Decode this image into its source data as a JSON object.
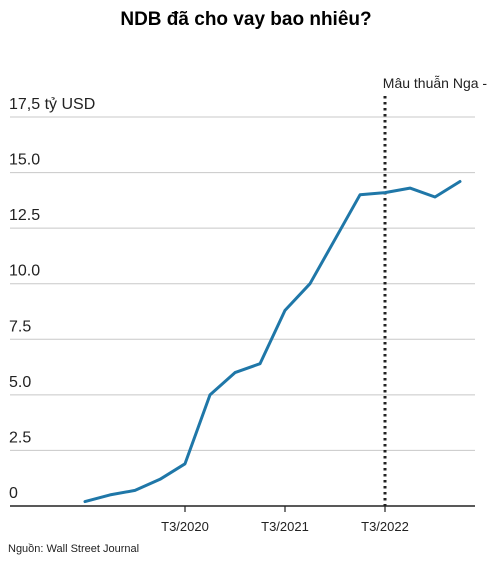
{
  "chart_data": {
    "type": "line",
    "title": "NDB đã cho vay bao nhiêu?",
    "ylabel": "",
    "xlabel": "",
    "ylim": [
      0,
      17.5
    ],
    "y_ticks": [
      "0",
      "2.5",
      "5.0",
      "7.5",
      "10.0",
      "12.5",
      "15.0",
      "17,5 tỷ USD"
    ],
    "y_tick_values": [
      0,
      2.5,
      5,
      7.5,
      10,
      12.5,
      15,
      17.5
    ],
    "x_ticks": [
      "T3/2020",
      "T3/2021",
      "T3/2022"
    ],
    "x_tick_index": [
      4,
      8,
      12
    ],
    "grid": true,
    "annotation": {
      "text": "Mâu thuẫn Nga - Ukraine",
      "at_index": 12
    },
    "series": [
      {
        "color": "#1f77a8",
        "values": [
          0.2,
          0.5,
          0.7,
          1.2,
          1.9,
          5.0,
          6.0,
          6.4,
          8.8,
          10.0,
          12.0,
          14.0,
          14.1,
          14.3,
          13.9,
          14.6
        ]
      }
    ],
    "source": "Nguồn: Wall Street Journal"
  }
}
